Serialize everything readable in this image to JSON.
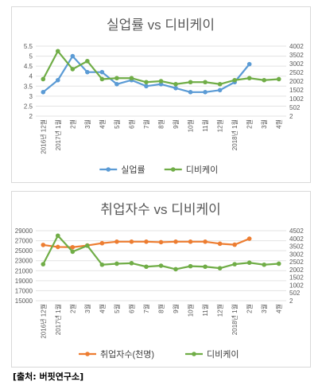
{
  "source": "[출처: 버핏연구소]",
  "colors": {
    "blue": "#5b9bd5",
    "orange": "#ed7d31",
    "green": "#70ad47"
  },
  "chart_data": [
    {
      "type": "line",
      "title": "실업률 vs 디비케이",
      "categories": [
        "2016년 12월",
        "2017년 1월",
        "2월",
        "3월",
        "4월",
        "5월",
        "6월",
        "7월",
        "8월",
        "9월",
        "10월",
        "11월",
        "12월",
        "2018년 1월",
        "2월",
        "3월",
        "4월"
      ],
      "left_axis": {
        "min": 2,
        "max": 5.5,
        "step": 0.5,
        "ticks": [
          "2",
          "2.5",
          "3",
          "3.5",
          "4",
          "4.5",
          "5",
          "5.5"
        ]
      },
      "right_axis": {
        "min": 2,
        "max": 4002,
        "step": 500,
        "ticks": [
          "2",
          "502",
          "1002",
          "1502",
          "2002",
          "2502",
          "3002",
          "3502",
          "4002"
        ]
      },
      "grid": true,
      "legend_position": "bottom",
      "series": [
        {
          "name": "실업률",
          "color": "#5b9bd5",
          "axis": "left",
          "marker": "circle",
          "values": [
            3.2,
            3.8,
            5.0,
            4.2,
            4.2,
            3.6,
            3.8,
            3.5,
            3.6,
            3.4,
            3.2,
            3.2,
            3.3,
            3.7,
            4.6,
            null,
            null
          ]
        },
        {
          "name": "디비케이",
          "color": "#70ad47",
          "axis": "left",
          "marker": "circle",
          "values": [
            3.85,
            5.25,
            4.35,
            4.75,
            3.85,
            3.9,
            3.9,
            3.7,
            3.75,
            3.6,
            3.7,
            3.7,
            3.6,
            3.8,
            3.9,
            3.8,
            3.85
          ]
        }
      ]
    },
    {
      "type": "line",
      "title": "취업자수 vs 디비케이",
      "categories": [
        "2016년 12월",
        "2017년 1월",
        "2월",
        "3월",
        "4월",
        "5월",
        "6월",
        "7월",
        "8월",
        "9월",
        "10월",
        "11월",
        "12월",
        "2018년 1월",
        "2월",
        "3월",
        "4월"
      ],
      "left_axis": {
        "min": 15000,
        "max": 29000,
        "step": 2000,
        "ticks": [
          "15000",
          "17000",
          "19000",
          "21000",
          "23000",
          "25000",
          "27000",
          "29000"
        ]
      },
      "right_axis": {
        "min": 2,
        "max": 4502,
        "step": 500,
        "ticks": [
          "2",
          "502",
          "1002",
          "1502",
          "2002",
          "2502",
          "3002",
          "3502",
          "4002",
          "4502"
        ]
      },
      "grid": true,
      "legend_position": "bottom",
      "series": [
        {
          "name": "취업자수(천명)",
          "color": "#ed7d31",
          "axis": "left",
          "marker": "circle",
          "values": [
            26150,
            25750,
            25700,
            26050,
            26500,
            26800,
            26800,
            26800,
            26700,
            26800,
            26800,
            26800,
            26400,
            26200,
            27400,
            null,
            null
          ]
        },
        {
          "name": "디비케이",
          "color": "#70ad47",
          "axis": "left",
          "marker": "circle",
          "values": [
            22300,
            28000,
            24800,
            26000,
            22200,
            22400,
            22500,
            21800,
            22000,
            21300,
            21900,
            21800,
            21500,
            22300,
            22600,
            22200,
            22400
          ]
        }
      ]
    }
  ]
}
